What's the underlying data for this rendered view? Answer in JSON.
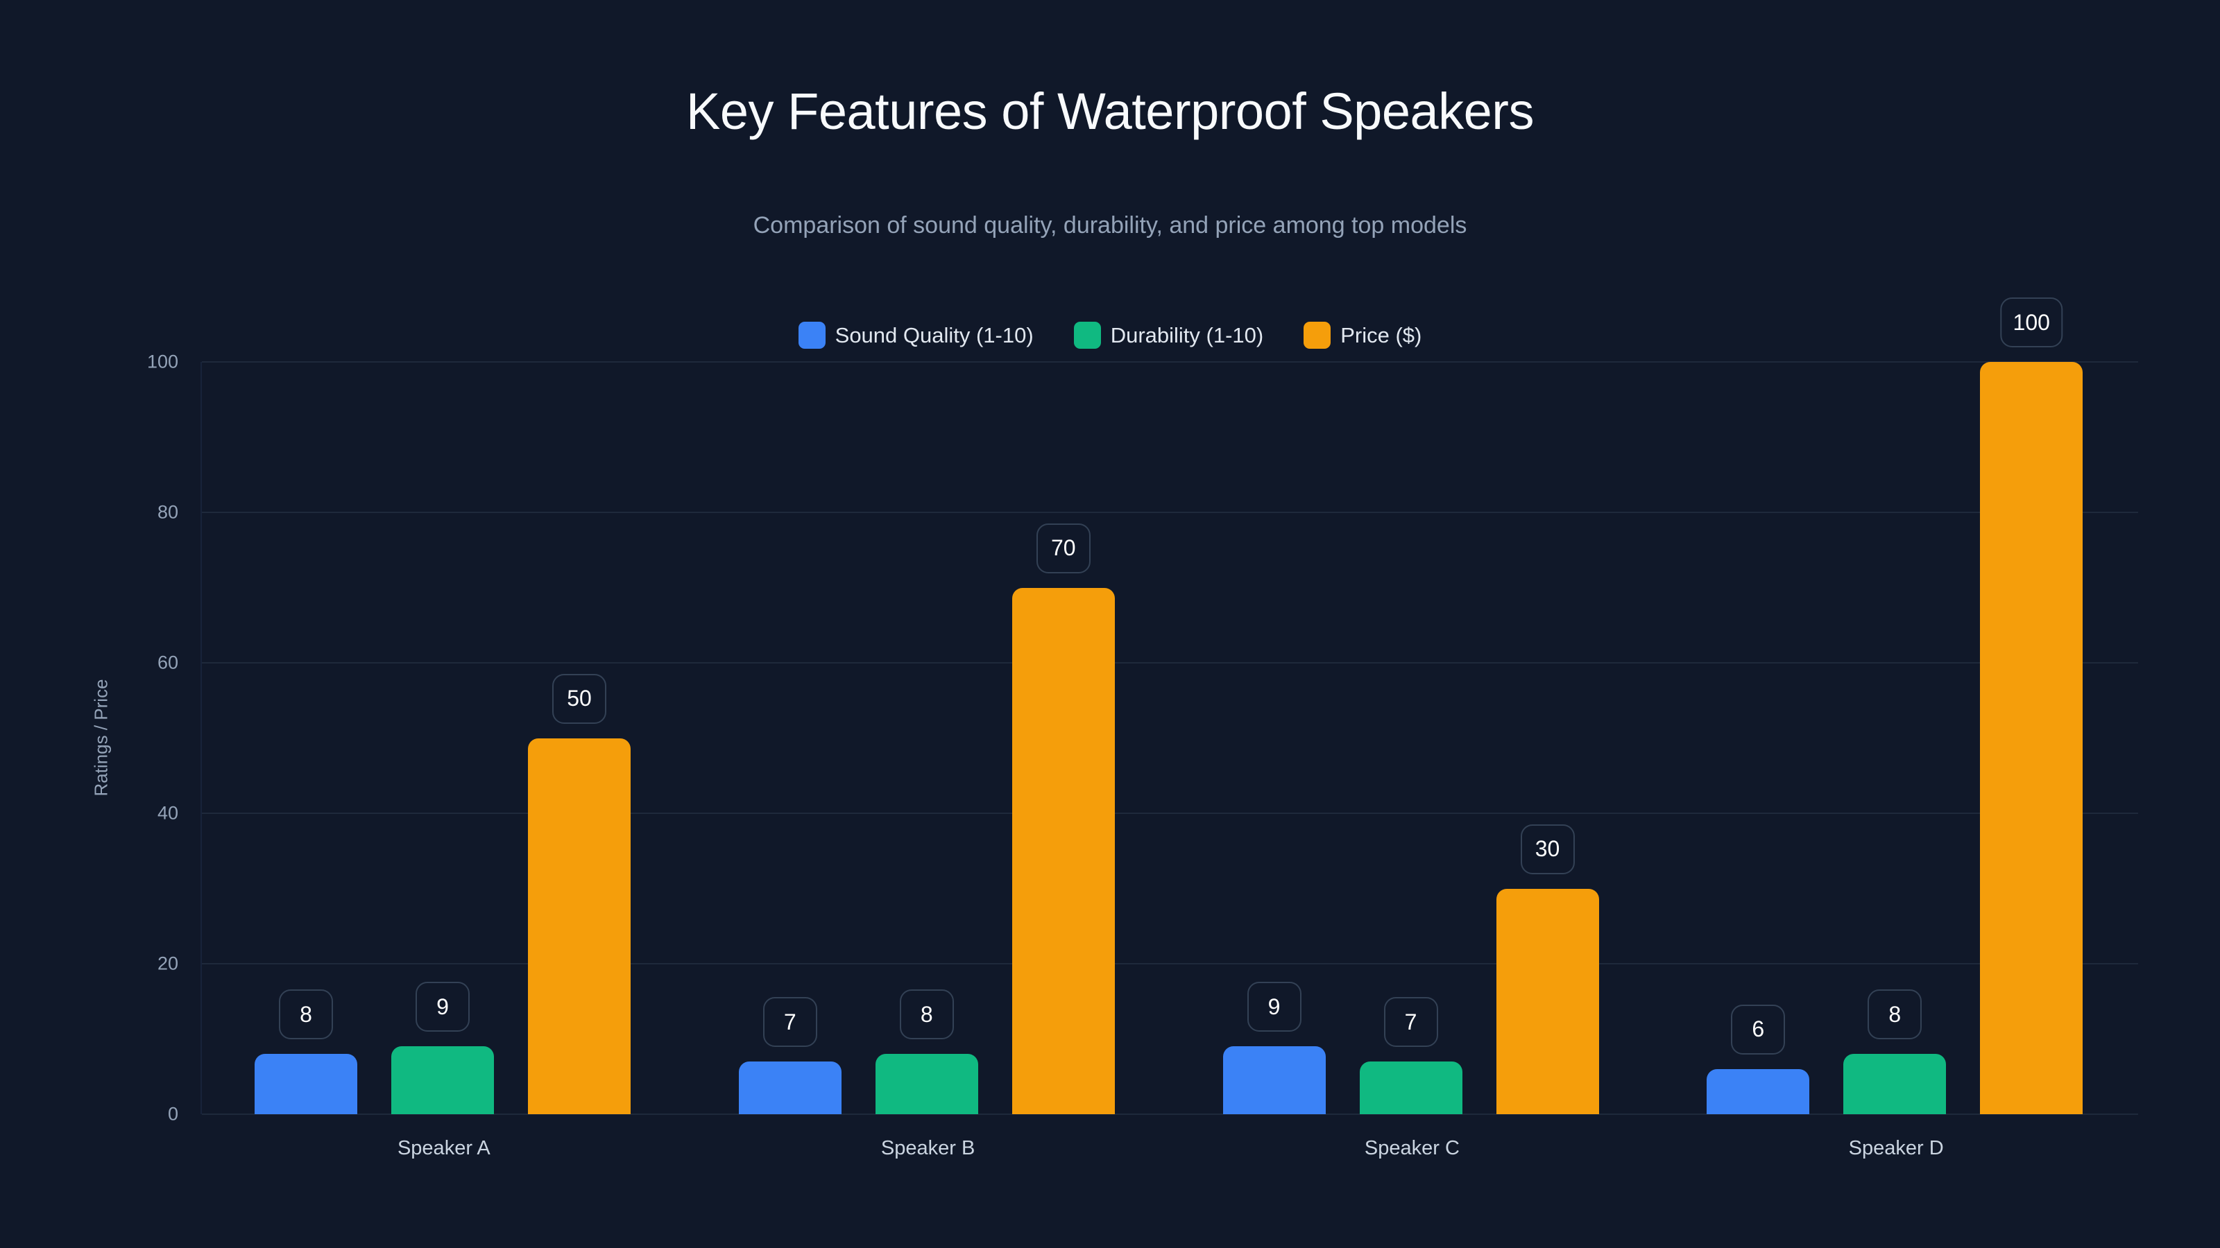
{
  "header": {
    "title": "Key Features of Waterproof Speakers",
    "subtitle": "Comparison of sound quality, durability, and price among top models"
  },
  "legend": [
    {
      "label": "Sound Quality (1-10)",
      "color": "#3b82f6"
    },
    {
      "label": "Durability (1-10)",
      "color": "#10b981"
    },
    {
      "label": "Price ($)",
      "color": "#f59e0b"
    }
  ],
  "axes": {
    "y_title": "Ratings / Price",
    "y_ticks": [
      "0",
      "20",
      "40",
      "60",
      "80",
      "100"
    ]
  },
  "chart_data": {
    "type": "bar",
    "title": "Key Features of Waterproof Speakers",
    "subtitle": "Comparison of sound quality, durability, and price among top models",
    "xlabel": "",
    "ylabel": "Ratings / Price",
    "ylim": [
      0,
      100
    ],
    "yticks": [
      0,
      20,
      40,
      60,
      80,
      100
    ],
    "grid": true,
    "legend_position": "top-center",
    "categories": [
      "Speaker A",
      "Speaker B",
      "Speaker C",
      "Speaker D"
    ],
    "series": [
      {
        "name": "Sound Quality (1-10)",
        "color": "#3b82f6",
        "values": [
          8,
          7,
          9,
          6
        ]
      },
      {
        "name": "Durability (1-10)",
        "color": "#10b981",
        "values": [
          9,
          8,
          7,
          8
        ]
      },
      {
        "name": "Price ($)",
        "color": "#f59e0b",
        "values": [
          50,
          70,
          30,
          100
        ]
      }
    ],
    "data_labels": true
  }
}
